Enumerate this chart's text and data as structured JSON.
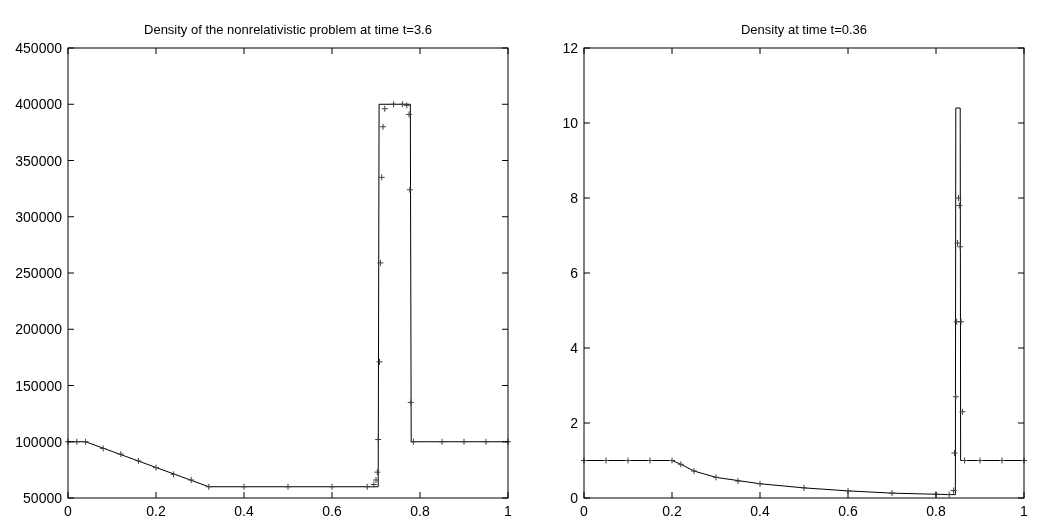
{
  "chart_data": [
    {
      "type": "line",
      "title": "Density of the nonrelativistic problem at time t=3.6",
      "xlim": [
        0,
        1
      ],
      "xticks": [
        0,
        0.2,
        0.4,
        0.6,
        0.8,
        1
      ],
      "ylim": [
        50000,
        450000
      ],
      "yticks": [
        50000,
        100000,
        150000,
        200000,
        250000,
        300000,
        350000,
        400000,
        450000
      ],
      "grid": false,
      "series": [
        {
          "color": "#000000",
          "marker": "none",
          "x": [
            0,
            0.04,
            0.32,
            0.705,
            0.707,
            0.778,
            0.78,
            1
          ],
          "values": [
            100000,
            100000,
            60000,
            60000,
            400000,
            400000,
            100000,
            100000
          ]
        },
        {
          "type": "scatter",
          "color": "#404040",
          "marker": "cross",
          "x": [
            0,
            0.02,
            0.04,
            0.08,
            0.12,
            0.16,
            0.2,
            0.24,
            0.28,
            0.32,
            0.4,
            0.5,
            0.6,
            0.68,
            0.695,
            0.7,
            0.703,
            0.705,
            0.708,
            0.71,
            0.713,
            0.716,
            0.72,
            0.74,
            0.76,
            0.77,
            0.775,
            0.777,
            0.779,
            0.785,
            0.85,
            0.9,
            0.95,
            1
          ],
          "values": [
            100000,
            100000,
            100000,
            94000,
            89000,
            83000,
            77000,
            71000,
            66000,
            60000,
            60000,
            60000,
            60000,
            60000,
            62000,
            66000,
            73000,
            102000,
            171000,
            259000,
            335000,
            380000,
            396000,
            400000,
            400000,
            399000,
            391000,
            324000,
            135000,
            100000,
            100000,
            100000,
            100000,
            100000
          ]
        }
      ]
    },
    {
      "type": "line",
      "title": "Density at time t=0.36",
      "xlim": [
        0,
        1
      ],
      "xticks": [
        0,
        0.2,
        0.4,
        0.6,
        0.8,
        1
      ],
      "ylim": [
        0,
        12
      ],
      "yticks": [
        0,
        2,
        4,
        6,
        8,
        10,
        12
      ],
      "grid": false,
      "series": [
        {
          "color": "#000000",
          "marker": "none",
          "x": [
            0,
            0.2,
            0.22,
            0.25,
            0.3,
            0.4,
            0.5,
            0.6,
            0.7,
            0.8,
            0.844,
            0.845,
            0.855,
            0.856,
            1
          ],
          "values": [
            1,
            1,
            0.9,
            0.72,
            0.55,
            0.38,
            0.27,
            0.19,
            0.13,
            0.1,
            0.09,
            10.4,
            10.4,
            1,
            1
          ]
        },
        {
          "type": "scatter",
          "color": "#404040",
          "marker": "cross",
          "x": [
            0,
            0.05,
            0.1,
            0.15,
            0.2,
            0.22,
            0.25,
            0.3,
            0.35,
            0.4,
            0.5,
            0.6,
            0.7,
            0.8,
            0.83,
            0.84,
            0.842,
            0.845,
            0.847,
            0.849,
            0.851,
            0.853,
            0.855,
            0.857,
            0.86,
            0.865,
            0.9,
            0.95,
            1
          ],
          "values": [
            1,
            1,
            1,
            1,
            1,
            0.9,
            0.72,
            0.55,
            0.45,
            0.38,
            0.27,
            0.19,
            0.13,
            0.1,
            0.09,
            0.2,
            1.2,
            2.7,
            4.7,
            6.8,
            8.0,
            7.8,
            6.7,
            4.7,
            2.3,
            1,
            1,
            1,
            1
          ]
        }
      ]
    }
  ]
}
